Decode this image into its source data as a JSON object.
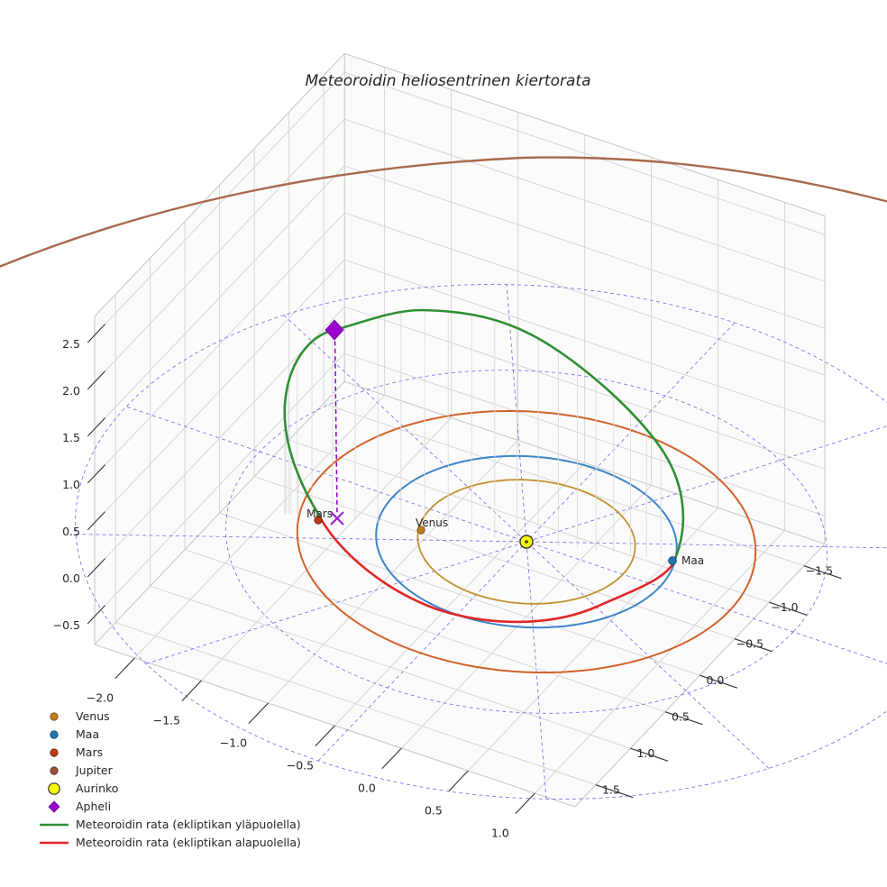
{
  "title": "Meteoroidin heliosentrinen kiertorata",
  "axes": {
    "x_tick_labels": [
      "−2.0",
      "−1.5",
      "−1.0",
      "−0.5",
      "0.0",
      "0.5",
      "1.0"
    ],
    "y_tick_labels": [
      "−1.5",
      "−1.0",
      "−0.5",
      "0.0",
      "0.5",
      "1.0",
      "1.5"
    ],
    "z_tick_labels": [
      "−0.5",
      "0.0",
      "0.5",
      "1.0",
      "1.5",
      "2.0",
      "2.5"
    ]
  },
  "bodies": {
    "venus": "Venus",
    "maa": "Maa",
    "mars": "Mars"
  },
  "legend": {
    "items": [
      {
        "label": "Venus",
        "marker": "dot",
        "color": "#bf7c1a"
      },
      {
        "label": "Maa",
        "marker": "dot",
        "color": "#1f77b4"
      },
      {
        "label": "Mars",
        "marker": "dot",
        "color": "#bb3a12"
      },
      {
        "label": "Jupiter",
        "marker": "dot",
        "color": "#9a5138"
      },
      {
        "label": "Aurinko",
        "marker": "circle",
        "color": "#ffff00"
      },
      {
        "label": "Apheli",
        "marker": "diamond",
        "color": "#9a00d0"
      },
      {
        "label": "Meteoroidin rata (ekliptikan yläpuolella)",
        "marker": "line",
        "color": "#2f8f33"
      },
      {
        "label": "Meteoroidin rata (ekliptikan alapuolella)",
        "marker": "line",
        "color": "#e02525"
      }
    ]
  },
  "colors": {
    "background": "#ffffff",
    "wall_grid": "#d6d6d6",
    "pane_edge": "#c9c9c9",
    "polar_grid": "#5050dd",
    "venus_orbit": "#c3902e",
    "earth_orbit": "#3d85c8",
    "mars_orbit": "#d2622a",
    "jupiter_orbit": "#a9694b",
    "meteoroid_above": "#2f8f33",
    "meteoroid_below": "#e02525",
    "sun_fill": "#ffff00",
    "aphelion": "#9a00d0",
    "aphelion_dropline": "#8b00c8",
    "text": "#262626"
  },
  "chart_data": {
    "type": "line",
    "projection": "3d",
    "title": "Meteoroidin heliosentrinen kiertorata",
    "xlabel": "",
    "ylabel": "",
    "zlabel": "",
    "x_ticks": [
      -2.0,
      -1.5,
      -1.0,
      -0.5,
      0.0,
      0.5,
      1.0
    ],
    "y_ticks": [
      -1.5,
      -1.0,
      -0.5,
      0.0,
      0.5,
      1.0,
      1.5
    ],
    "z_ticks": [
      -0.5,
      0.0,
      0.5,
      1.0,
      1.5,
      2.0,
      2.5
    ],
    "grid": {
      "ecliptic_polar_circles_au": [
        1.0,
        2.0,
        3.0
      ],
      "spoke_step_deg": 30,
      "style": "blue dashed on ecliptic plane z=0"
    },
    "series": [
      {
        "name": "Venus orbit",
        "shape": "circle",
        "radius_au": 0.72,
        "plane": "z=0",
        "color": "#c3902e"
      },
      {
        "name": "Maa orbit",
        "shape": "circle",
        "radius_au": 1.0,
        "plane": "z=0",
        "color": "#3d85c8"
      },
      {
        "name": "Mars orbit",
        "shape": "circle",
        "radius_au": 1.52,
        "plane": "z=0",
        "color": "#d2622a"
      },
      {
        "name": "Jupiter orbit",
        "shape": "circle",
        "radius_au": 5.2,
        "plane": "z=0",
        "color": "#a9694b",
        "note": "only far arc visible at top of view"
      },
      {
        "name": "Meteoroidin rata (ekliptikan yläpuolella)",
        "color": "#2f8f33",
        "description": "inclined meteoroid orbit segment above the ecliptic, from node near Mars up through aphelion and back down to node near Maa"
      },
      {
        "name": "Meteoroidin rata (ekliptikan alapuolella)",
        "color": "#e02525",
        "description": "meteoroid orbit segment below the ecliptic, running close to Earth's orbit between the two nodes"
      }
    ],
    "points": [
      {
        "name": "Aurinko",
        "x": 0.0,
        "y": 0.0,
        "z": 0.0,
        "marker": "circle",
        "color": "#ffff00"
      },
      {
        "name": "Venus",
        "x": -0.67,
        "y": 0.24,
        "z": 0.0,
        "marker": "dot",
        "color": "#bf7c1a"
      },
      {
        "name": "Maa",
        "x": 0.94,
        "y": -0.31,
        "z": 0.0,
        "marker": "dot",
        "color": "#1f77b4"
      },
      {
        "name": "Mars",
        "x": -1.3,
        "y": 0.51,
        "z": 0.0,
        "marker": "dot",
        "color": "#bb3a12"
      },
      {
        "name": "Apheli",
        "x": -1.2,
        "y": 0.42,
        "z": 1.95,
        "marker": "diamond",
        "color": "#9a00d0"
      }
    ],
    "annotations": [
      "dashed violet vertical drop line from Apheli down to ecliptic plane ending in X marker",
      "light gray vertical stems connect the green orbit segment to its ecliptic projection"
    ],
    "legend_position": "lower left",
    "grid_on": true
  }
}
